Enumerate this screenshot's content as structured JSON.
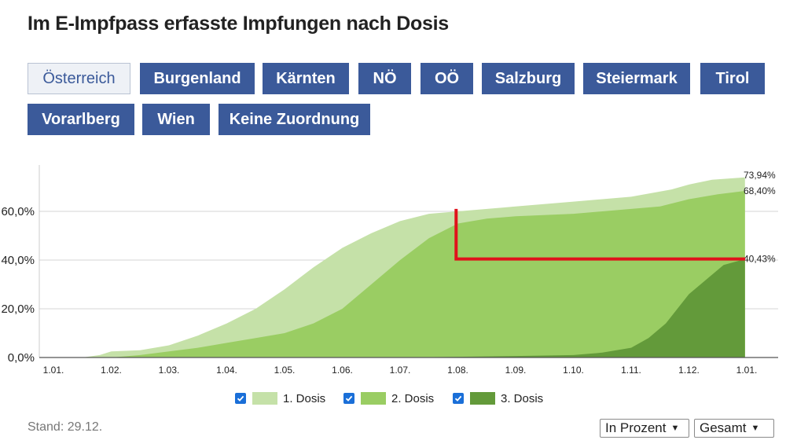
{
  "title": "Im E-Impfpass erfasste Impfungen nach Dosis",
  "regions": [
    {
      "label": "Österreich",
      "active": true
    },
    {
      "label": "Burgenland",
      "active": false
    },
    {
      "label": "Kärnten",
      "active": false
    },
    {
      "label": "NÖ",
      "active": false
    },
    {
      "label": "OÖ",
      "active": false
    },
    {
      "label": "Salzburg",
      "active": false
    },
    {
      "label": "Steiermark",
      "active": false
    },
    {
      "label": "Tirol",
      "active": false
    },
    {
      "label": "Vorarlberg",
      "active": false
    },
    {
      "label": "Wien",
      "active": false
    },
    {
      "label": "Keine Zuordnung",
      "active": false
    }
  ],
  "chart_data": {
    "type": "area",
    "x_labels": [
      "1.01.",
      "1.02.",
      "1.03.",
      "1.04.",
      "1.05.",
      "1.06.",
      "1.07.",
      "1.08.",
      "1.09.",
      "1.10.",
      "1.11.",
      "1.12.",
      "1.01."
    ],
    "y_ticks": [
      "0,0%",
      "20,0%",
      "40,0%",
      "60,0%"
    ],
    "ylim": [
      0,
      80
    ],
    "grid": true,
    "legend_position": "bottom",
    "series": [
      {
        "name": "1. Dosis",
        "color": "#c5e1a8",
        "end_label": "73,94%",
        "points": [
          [
            0,
            0
          ],
          [
            0.5,
            0
          ],
          [
            0.8,
            1
          ],
          [
            1,
            2.5
          ],
          [
            1.5,
            3
          ],
          [
            2,
            5
          ],
          [
            2.5,
            9
          ],
          [
            3,
            14
          ],
          [
            3.5,
            20
          ],
          [
            4,
            28
          ],
          [
            4.5,
            37
          ],
          [
            5,
            45
          ],
          [
            5.5,
            51
          ],
          [
            6,
            56
          ],
          [
            6.5,
            59
          ],
          [
            7,
            60
          ],
          [
            8,
            62
          ],
          [
            9,
            64
          ],
          [
            10,
            66
          ],
          [
            10.7,
            69
          ],
          [
            11,
            71
          ],
          [
            11.4,
            73
          ],
          [
            11.97,
            73.94
          ]
        ]
      },
      {
        "name": "2. Dosis",
        "color": "#9acd63",
        "end_label": "68,40%",
        "points": [
          [
            0,
            0
          ],
          [
            1,
            0
          ],
          [
            1.5,
            1
          ],
          [
            2,
            2.5
          ],
          [
            2.5,
            4
          ],
          [
            3,
            6
          ],
          [
            3.5,
            8
          ],
          [
            4,
            10
          ],
          [
            4.5,
            14
          ],
          [
            5,
            20
          ],
          [
            5.5,
            30
          ],
          [
            6,
            40
          ],
          [
            6.5,
            49
          ],
          [
            7,
            55
          ],
          [
            7.5,
            57
          ],
          [
            8,
            58
          ],
          [
            9,
            59
          ],
          [
            10,
            61
          ],
          [
            10.5,
            62
          ],
          [
            11,
            65
          ],
          [
            11.5,
            67
          ],
          [
            11.97,
            68.4
          ]
        ]
      },
      {
        "name": "3. Dosis",
        "color": "#639a3a",
        "end_label": "40,43%",
        "points": [
          [
            0,
            0
          ],
          [
            6,
            0
          ],
          [
            7,
            0.3
          ],
          [
            8,
            0.6
          ],
          [
            9,
            1
          ],
          [
            9.5,
            2
          ],
          [
            10,
            4
          ],
          [
            10.3,
            8
          ],
          [
            10.6,
            14
          ],
          [
            10.8,
            20
          ],
          [
            11,
            26
          ],
          [
            11.3,
            32
          ],
          [
            11.6,
            38
          ],
          [
            11.97,
            40.43
          ]
        ]
      }
    ]
  },
  "legend_checked": true,
  "stand": "Stand: 29.12.",
  "controls": {
    "unit_select": "In Prozent",
    "range_select": "Gesamt"
  }
}
